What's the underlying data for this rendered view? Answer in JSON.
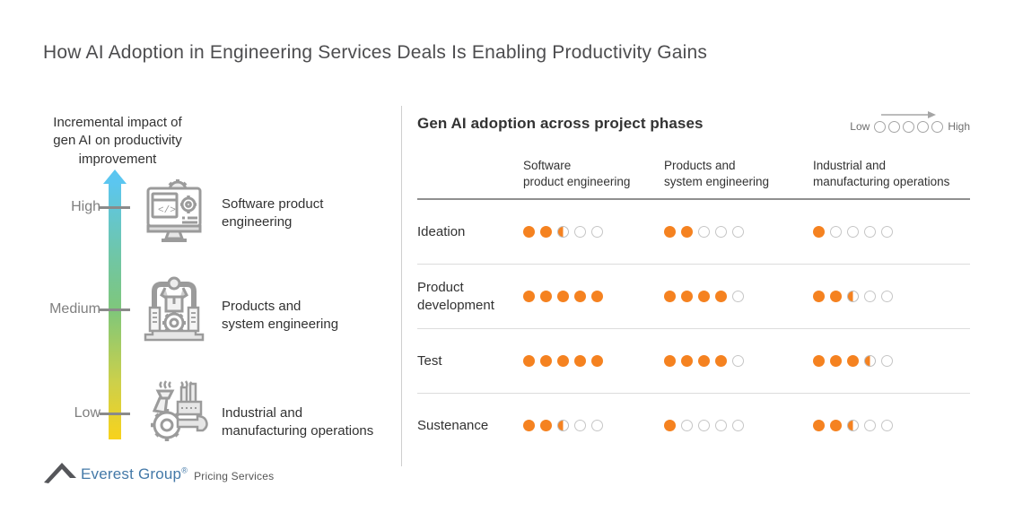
{
  "title": "How AI Adoption in Engineering Services Deals Is Enabling Productivity Gains",
  "impact_axis": {
    "title": "Incremental impact of\ngen AI on productivity\nimprovement",
    "levels": [
      {
        "label": "High"
      },
      {
        "label": "Medium"
      },
      {
        "label": "Low"
      }
    ],
    "items": [
      {
        "icon": "software-product-engineering-icon",
        "label": "Software product\nengineering"
      },
      {
        "icon": "products-system-engineering-icon",
        "label": "Products and\nsystem engineering"
      },
      {
        "icon": "industrial-manufacturing-icon",
        "label": "Industrial and\nmanufacturing operations"
      }
    ],
    "gradient": {
      "top": "#5bc6f0",
      "middle": "#7fc77a",
      "bottom": "#f8d21c"
    }
  },
  "matrix": {
    "title": "Gen AI adoption across project phases",
    "legend": {
      "low_label": "Low",
      "high_label": "High",
      "levels": 5
    },
    "columns": [
      "Software\nproduct engineering",
      "Products and\nsystem engineering",
      "Industrial and\nmanufacturing operations"
    ],
    "rows": [
      {
        "label": "Ideation",
        "ratings": [
          2.5,
          2,
          1
        ]
      },
      {
        "label": "Product\ndevelopment",
        "ratings": [
          5,
          4,
          2.5
        ]
      },
      {
        "label": "Test",
        "ratings": [
          5,
          4,
          3.5
        ]
      },
      {
        "label": "Sustenance",
        "ratings": [
          2.5,
          1,
          2.5
        ]
      }
    ],
    "rating_scale_max": 5,
    "dot_color": "#f58220"
  },
  "footer": {
    "brand": "Everest Group",
    "registered_mark": "®",
    "suffix": "Pricing Services",
    "brand_color": "#4479a8"
  }
}
